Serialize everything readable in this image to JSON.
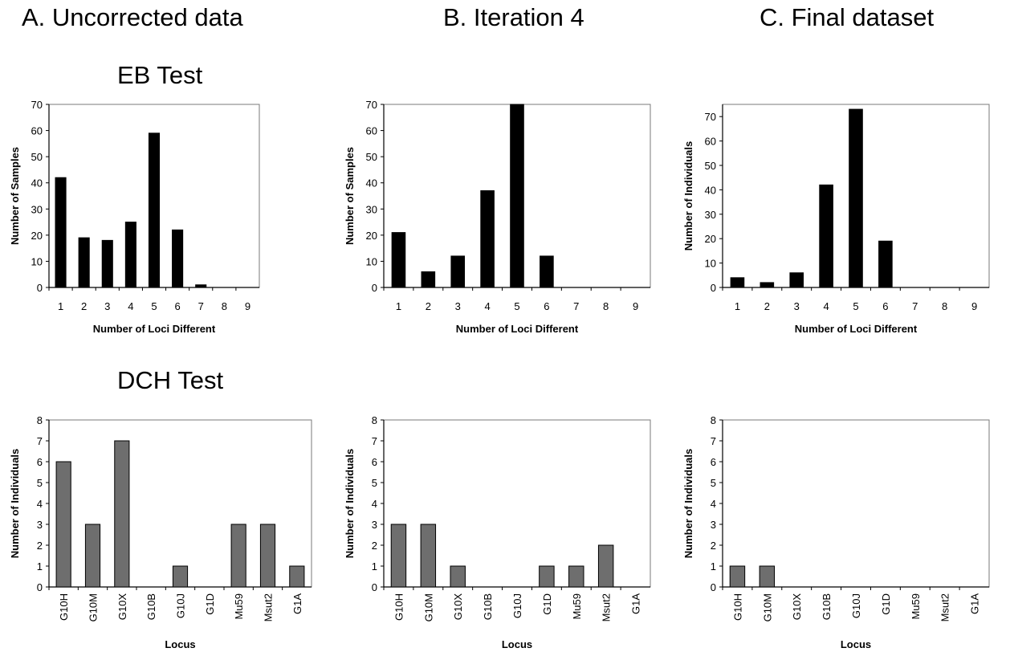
{
  "column_titles": [
    "A. Uncorrected data",
    "B. Iteration 4",
    "C. Final dataset"
  ],
  "row_titles": [
    "EB Test",
    "DCH Test"
  ],
  "colors": {
    "eb_bar": "#000000",
    "dch_bar": "#6e6e6e",
    "bar_stroke": "#000000",
    "frame": "#7a7a7a"
  },
  "chart_data": [
    {
      "type": "bar",
      "panel": "EB Test - A. Uncorrected data",
      "categories": [
        "1",
        "2",
        "3",
        "4",
        "5",
        "6",
        "7",
        "8",
        "9"
      ],
      "values": [
        42,
        19,
        18,
        25,
        59,
        22,
        1,
        0,
        0
      ],
      "xlabel": "Number of Loci Different",
      "ylabel": "Number of Samples",
      "ylim": [
        0,
        70
      ],
      "yticks": [
        0,
        10,
        20,
        30,
        40,
        50,
        60,
        70
      ],
      "grid": false
    },
    {
      "type": "bar",
      "panel": "EB Test - B. Iteration 4",
      "categories": [
        "1",
        "2",
        "3",
        "4",
        "5",
        "6",
        "7",
        "8",
        "9"
      ],
      "values": [
        21,
        6,
        12,
        37,
        70,
        12,
        0,
        0,
        0
      ],
      "xlabel": "Number of Loci Different",
      "ylabel": "Number of Samples",
      "ylim": [
        0,
        70
      ],
      "yticks": [
        0,
        10,
        20,
        30,
        40,
        50,
        60,
        70
      ],
      "grid": false
    },
    {
      "type": "bar",
      "panel": "EB Test - C. Final dataset",
      "categories": [
        "1",
        "2",
        "3",
        "4",
        "5",
        "6",
        "7",
        "8",
        "9"
      ],
      "values": [
        4,
        2,
        6,
        42,
        73,
        19,
        0,
        0,
        0
      ],
      "xlabel": "Number of Loci Different",
      "ylabel": "Number of Individuals",
      "ylim": [
        0,
        75
      ],
      "yticks": [
        0,
        10,
        20,
        30,
        40,
        50,
        60,
        70
      ],
      "grid": false
    },
    {
      "type": "bar",
      "panel": "DCH Test - A. Uncorrected data",
      "categories": [
        "G10H",
        "G10M",
        "G10X",
        "G10B",
        "G10J",
        "G1D",
        "Mu59",
        "Msut2",
        "G1A"
      ],
      "values": [
        6,
        3,
        7,
        0,
        1,
        0,
        3,
        3,
        1
      ],
      "xlabel": "Locus",
      "ylabel": "Number of Individuals",
      "ylim": [
        0,
        8
      ],
      "yticks": [
        0,
        1,
        2,
        3,
        4,
        5,
        6,
        7,
        8
      ],
      "grid": false
    },
    {
      "type": "bar",
      "panel": "DCH Test - B. Iteration 4",
      "categories": [
        "G10H",
        "G10M",
        "G10X",
        "G10B",
        "G10J",
        "G1D",
        "Mu59",
        "Msut2",
        "G1A"
      ],
      "values": [
        3,
        3,
        1,
        0,
        0,
        1,
        1,
        2,
        0
      ],
      "xlabel": "Locus",
      "ylabel": "Number of Individuals",
      "ylim": [
        0,
        8
      ],
      "yticks": [
        0,
        1,
        2,
        3,
        4,
        5,
        6,
        7,
        8
      ],
      "grid": false
    },
    {
      "type": "bar",
      "panel": "DCH Test - C. Final dataset",
      "categories": [
        "G10H",
        "G10M",
        "G10X",
        "G10B",
        "G10J",
        "G1D",
        "Mu59",
        "Msut2",
        "G1A"
      ],
      "values": [
        1,
        1,
        0,
        0,
        0,
        0,
        0,
        0,
        0
      ],
      "xlabel": "Locus",
      "ylabel": "Number of Individuals",
      "ylim": [
        0,
        8
      ],
      "yticks": [
        0,
        1,
        2,
        3,
        4,
        5,
        6,
        7,
        8
      ],
      "grid": false
    }
  ]
}
